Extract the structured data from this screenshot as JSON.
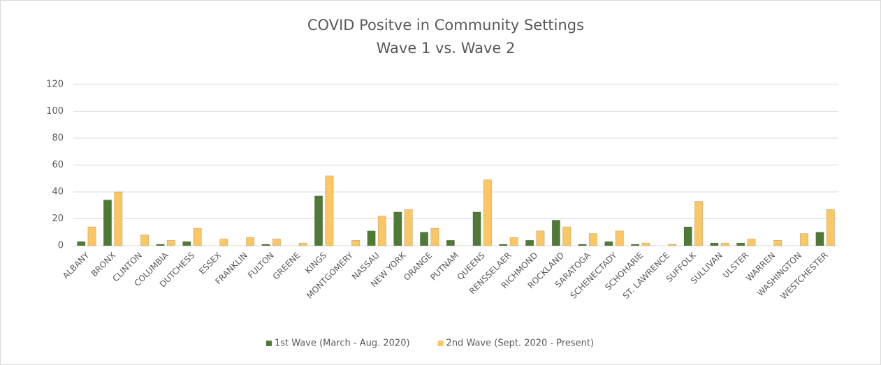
{
  "chart_data": {
    "type": "bar",
    "title": "COVID Positve in Community Settings",
    "subtitle": "Wave 1 vs. Wave 2",
    "categories": [
      "ALBANY",
      "BRONX",
      "CLINTON",
      "COLUMBIA",
      "DUTCHESS",
      "ESSEX",
      "FRANKLIN",
      "FULTON",
      "GREENE",
      "KINGS",
      "MONTGOMERY",
      "NASSAU",
      "NEW YORK",
      "ORANGE",
      "PUTNAM",
      "QUEENS",
      "RENSSELAER",
      "RICHMOND",
      "ROCKLAND",
      "SARATOGA",
      "SCHENECTADY",
      "SCHOHARIE",
      "ST. LAWRENCE",
      "SUFFOLK",
      "SULLIVAN",
      "ULSTER",
      "WARREN",
      "WASHINGTON",
      "WESTCHESTER"
    ],
    "series": [
      {
        "name": "1st Wave (March - Aug. 2020)",
        "color": "#4f7a35",
        "values": [
          3,
          34,
          0,
          1,
          3,
          0,
          0,
          1,
          0,
          37,
          0,
          11,
          25,
          10,
          4,
          25,
          1,
          4,
          19,
          1,
          3,
          1,
          0,
          14,
          2,
          2,
          0,
          0,
          10
        ]
      },
      {
        "name": "2nd Wave (Sept. 2020 - Present)",
        "color": "#fcc763",
        "values": [
          14,
          40,
          8,
          4,
          13,
          5,
          6,
          5,
          2,
          52,
          4,
          22,
          27,
          13,
          0,
          49,
          6,
          11,
          14,
          9,
          11,
          2,
          1,
          33,
          2,
          5,
          4,
          9,
          27
        ]
      }
    ],
    "ylim": [
      0,
      120
    ],
    "yticks": [
      0,
      20,
      40,
      60,
      80,
      100,
      120
    ],
    "grid": true,
    "legend": "bottom"
  }
}
